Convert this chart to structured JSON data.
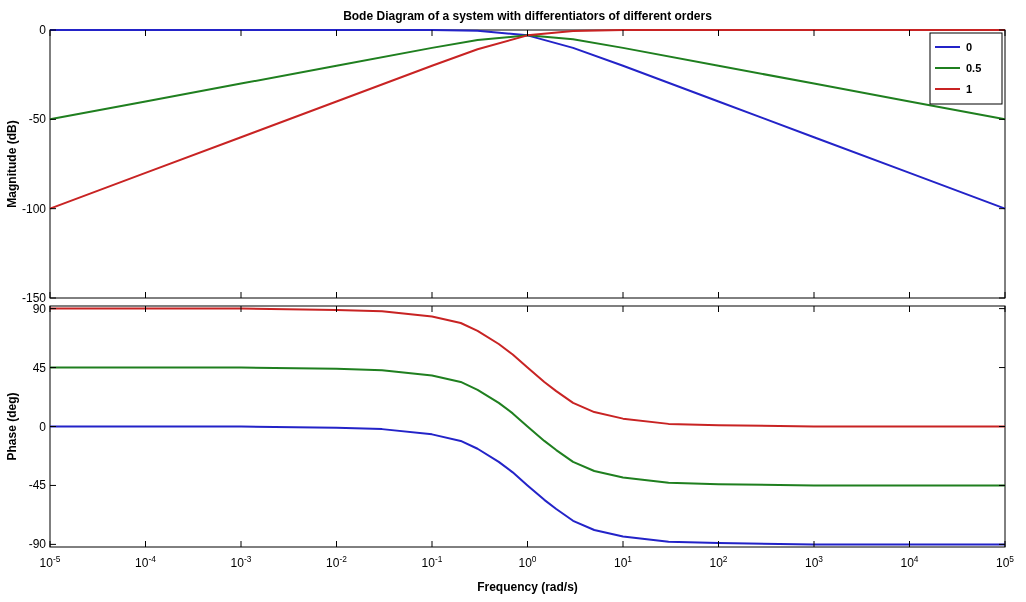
{
  "chart_data": [
    {
      "type": "line",
      "title": "Bode Diagram of a system with differentiators of different orders",
      "ylabel": "Magnitude (dB)",
      "log": "x",
      "xlim": [
        1e-05,
        100000
      ],
      "ylim": [
        -150,
        0
      ],
      "yticks": [
        -150,
        -100,
        -50,
        0
      ],
      "xticks": [
        {
          "value": 1e-05,
          "label": null
        },
        {
          "value": 0.0001,
          "label": null
        },
        {
          "value": 0.001,
          "label": null
        },
        {
          "value": 0.01,
          "label": null
        },
        {
          "value": 0.1,
          "label": null
        },
        {
          "value": 1,
          "label": null
        },
        {
          "value": 10,
          "label": null
        },
        {
          "value": 100,
          "label": null
        },
        {
          "value": 1000,
          "label": null
        },
        {
          "value": 10000,
          "label": null
        },
        {
          "value": 100000,
          "label": null
        }
      ],
      "tick_labels": "y",
      "legend": "top right",
      "grid": false,
      "series": [
        {
          "name": "0",
          "color": "#2323c8",
          "x": [
            1e-05,
            0.0001,
            0.001,
            0.01,
            0.1,
            0.3,
            1,
            3,
            10,
            100,
            1000,
            10000,
            100000
          ],
          "values": [
            0,
            0,
            0,
            0,
            0,
            -0.4,
            -3,
            -10,
            -20,
            -40,
            -60,
            -80,
            -100
          ]
        },
        {
          "name": "0.5",
          "color": "#1f7f1f",
          "x": [
            1e-05,
            0.0001,
            0.001,
            0.01,
            0.1,
            0.3,
            1,
            3,
            10,
            100,
            1000,
            10000,
            100000
          ],
          "values": [
            -50,
            -40,
            -30,
            -20,
            -10,
            -5.6,
            -3,
            -5.2,
            -10,
            -20,
            -30,
            -40,
            -50
          ]
        },
        {
          "name": "1",
          "color": "#c82323",
          "x": [
            1e-05,
            0.0001,
            0.001,
            0.01,
            0.1,
            0.3,
            1,
            3,
            10,
            100,
            1000,
            10000,
            100000
          ],
          "values": [
            -100,
            -80,
            -60,
            -40,
            -20,
            -10.8,
            -3,
            -0.5,
            0,
            0,
            0,
            0,
            0
          ]
        }
      ]
    },
    {
      "type": "line",
      "xlabel": "Frequency  (rad/s)",
      "ylabel": "Phase (deg)",
      "log": "x",
      "xlim": [
        1e-05,
        100000
      ],
      "ylim": [
        -92,
        92
      ],
      "yticks": [
        -90,
        -45,
        0,
        45,
        90
      ],
      "xticks": [
        {
          "value": 1e-05,
          "label": "10$^{-5}$"
        },
        {
          "value": 0.0001,
          "label": "10$^{-4}$"
        },
        {
          "value": 0.001,
          "label": "10$^{-3}$"
        },
        {
          "value": 0.01,
          "label": "10$^{-2}$"
        },
        {
          "value": 0.1,
          "label": "10$^{-1}$"
        },
        {
          "value": 1,
          "label": "10$^{0}$"
        },
        {
          "value": 10,
          "label": "10$^{1}$"
        },
        {
          "value": 100,
          "label": "10$^{2}$"
        },
        {
          "value": 1000,
          "label": "10$^{3}$"
        },
        {
          "value": 10000,
          "label": "10$^{4}$"
        },
        {
          "value": 100000,
          "label": "10$^{5}$"
        }
      ],
      "grid": false,
      "series": [
        {
          "color": "#2323c8",
          "x": [
            1e-05,
            0.001,
            0.01,
            0.03,
            0.1,
            0.2,
            0.3,
            0.5,
            0.7,
            1,
            1.5,
            2,
            3,
            5,
            10,
            30,
            100,
            1000,
            100000
          ],
          "values": [
            0,
            0,
            -1,
            -2,
            -6,
            -11,
            -17,
            -27,
            -35,
            -45,
            -56,
            -63,
            -72,
            -79,
            -84,
            -88,
            -89,
            -90,
            -90
          ]
        },
        {
          "color": "#1f7f1f",
          "x": [
            1e-05,
            0.001,
            0.01,
            0.03,
            0.1,
            0.2,
            0.3,
            0.5,
            0.7,
            1,
            1.5,
            2,
            3,
            5,
            10,
            30,
            100,
            1000,
            100000
          ],
          "values": [
            45,
            45,
            44,
            43,
            39,
            34,
            28,
            18,
            10,
            0,
            -11,
            -18,
            -27,
            -34,
            -39,
            -43,
            -44,
            -45,
            -45
          ]
        },
        {
          "color": "#c82323",
          "x": [
            1e-05,
            0.001,
            0.01,
            0.03,
            0.1,
            0.2,
            0.3,
            0.5,
            0.7,
            1,
            1.5,
            2,
            3,
            5,
            10,
            30,
            100,
            1000,
            100000
          ],
          "values": [
            90,
            90,
            89,
            88,
            84,
            79,
            73,
            63,
            55,
            45,
            34,
            27,
            18,
            11,
            6,
            2,
            1,
            0,
            0
          ]
        }
      ]
    }
  ]
}
